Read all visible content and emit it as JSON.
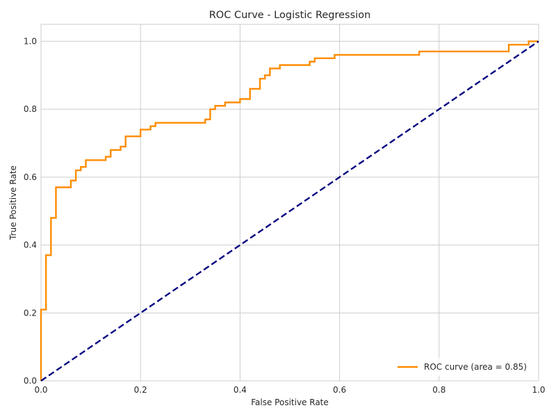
{
  "chart_data": {
    "type": "line",
    "title": "ROC Curve - Logistic Regression",
    "xlabel": "False Positive Rate",
    "ylabel": "True Positive Rate",
    "xlim": [
      0.0,
      1.0
    ],
    "ylim": [
      0.0,
      1.05
    ],
    "xticks": [
      0.0,
      0.2,
      0.4,
      0.6,
      0.8,
      1.0
    ],
    "xtick_labels": [
      "0.0",
      "0.2",
      "0.4",
      "0.6",
      "0.8",
      "1.0"
    ],
    "yticks": [
      0.0,
      0.2,
      0.4,
      0.6,
      0.8,
      1.0
    ],
    "ytick_labels": [
      "0.0",
      "0.2",
      "0.4",
      "0.6",
      "0.8",
      "1.0"
    ],
    "grid": true,
    "legend_position": "lower-right",
    "series": [
      {
        "name": "ROC curve (area = 0.85)",
        "color": "#ff8c00",
        "style": "solid",
        "step": true,
        "x": [
          0.0,
          0.0,
          0.01,
          0.01,
          0.02,
          0.02,
          0.03,
          0.03,
          0.06,
          0.06,
          0.07,
          0.07,
          0.08,
          0.08,
          0.09,
          0.09,
          0.13,
          0.13,
          0.14,
          0.14,
          0.16,
          0.16,
          0.17,
          0.17,
          0.2,
          0.2,
          0.22,
          0.22,
          0.23,
          0.23,
          0.33,
          0.33,
          0.34,
          0.34,
          0.35,
          0.35,
          0.37,
          0.37,
          0.4,
          0.4,
          0.42,
          0.42,
          0.44,
          0.44,
          0.45,
          0.45,
          0.46,
          0.46,
          0.48,
          0.48,
          0.54,
          0.54,
          0.55,
          0.55,
          0.59,
          0.59,
          0.76,
          0.76,
          0.94,
          0.94,
          0.98,
          0.98,
          1.0
        ],
        "y": [
          0.0,
          0.21,
          0.21,
          0.37,
          0.37,
          0.48,
          0.48,
          0.57,
          0.57,
          0.59,
          0.59,
          0.62,
          0.62,
          0.63,
          0.63,
          0.65,
          0.65,
          0.66,
          0.66,
          0.68,
          0.68,
          0.69,
          0.69,
          0.72,
          0.72,
          0.74,
          0.74,
          0.75,
          0.75,
          0.76,
          0.76,
          0.77,
          0.77,
          0.8,
          0.8,
          0.81,
          0.81,
          0.82,
          0.82,
          0.83,
          0.83,
          0.86,
          0.86,
          0.89,
          0.89,
          0.9,
          0.9,
          0.92,
          0.92,
          0.93,
          0.93,
          0.94,
          0.94,
          0.95,
          0.95,
          0.96,
          0.96,
          0.97,
          0.97,
          0.99,
          0.99,
          1.0,
          1.0
        ]
      },
      {
        "name": "",
        "color": "#000080",
        "style": "dashed",
        "x": [
          0.0,
          1.0
        ],
        "y": [
          0.0,
          1.0
        ]
      }
    ],
    "legend": {
      "entries": [
        {
          "label": "ROC curve (area = 0.85)",
          "color": "#ff8c00"
        }
      ]
    }
  }
}
